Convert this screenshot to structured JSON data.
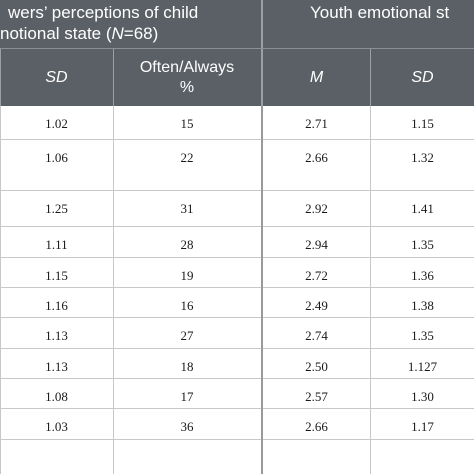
{
  "header": {
    "group1_line1": "wers’ perceptions of child",
    "group1_line2_prefix": "notional state (",
    "group1_line2_n": "N",
    "group1_line2_suffix": "=68)",
    "group2_line1": "Youth emotional st"
  },
  "columns": {
    "sd1": "SD",
    "often_line1": "Often/Always",
    "often_line2": "%",
    "m2": "M",
    "sd2": "SD"
  },
  "rows": [
    {
      "sd1": "1.02",
      "often": "15",
      "m2": "2.71",
      "sd2": "1.15"
    },
    {
      "sd1": "1.06",
      "often": "22",
      "m2": "2.66",
      "sd2": "1.32"
    },
    {
      "sd1": "1.25",
      "often": "31",
      "m2": "2.92",
      "sd2": "1.41"
    },
    {
      "sd1": "1.11",
      "often": "28",
      "m2": "2.94",
      "sd2": "1.35"
    },
    {
      "sd1": "1.15",
      "often": "19",
      "m2": "2.72",
      "sd2": "1.36"
    },
    {
      "sd1": "1.16",
      "often": "16",
      "m2": "2.49",
      "sd2": "1.38"
    },
    {
      "sd1": "1.13",
      "often": "27",
      "m2": "2.74",
      "sd2": "1.35"
    },
    {
      "sd1": "1.13",
      "often": "18",
      "m2": "2.50",
      "sd2": "1.127"
    },
    {
      "sd1": "1.08",
      "often": "17",
      "m2": "2.57",
      "sd2": "1.30"
    },
    {
      "sd1": "1.03",
      "often": "36",
      "m2": "2.66",
      "sd2": "1.17"
    }
  ]
}
